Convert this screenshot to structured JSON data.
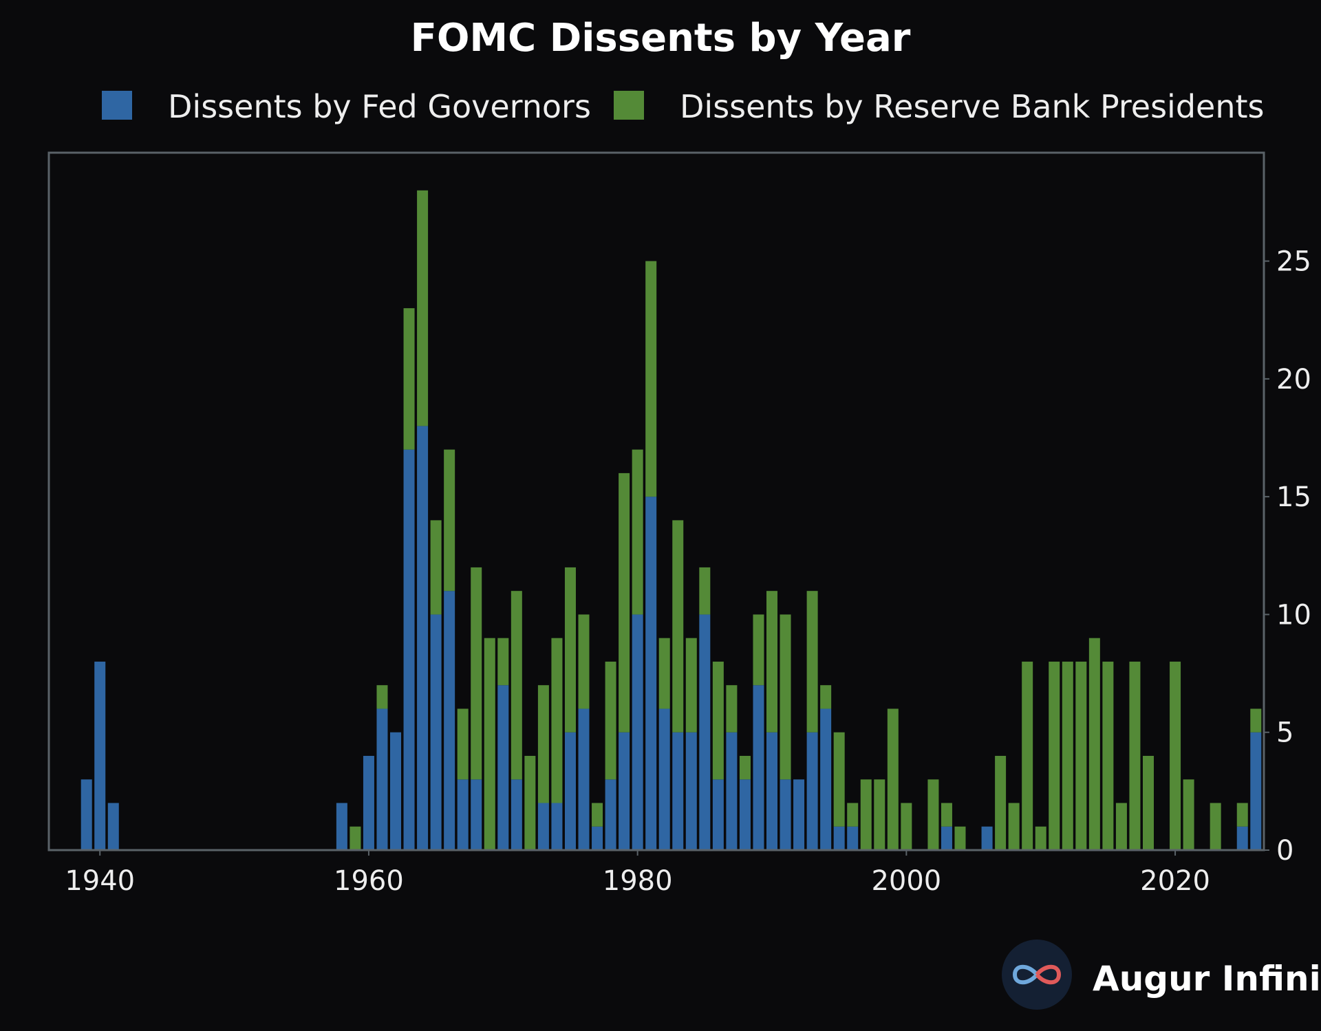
{
  "chart_data": {
    "type": "bar",
    "stacked": true,
    "title": "FOMC Dissents by Year",
    "xlabel": "",
    "ylabel": "",
    "xlim": [
      1936.2,
      2026.6
    ],
    "ylim": [
      0,
      29.6
    ],
    "x_ticks": [
      1940,
      1960,
      1980,
      2000,
      2020
    ],
    "y_ticks": [
      0,
      5,
      10,
      15,
      20,
      25
    ],
    "y_axis_side": "right",
    "legend_position": "top",
    "grid": false,
    "series": [
      {
        "name": "Dissents by Fed Governors",
        "color": "#2f66a3"
      },
      {
        "name": "Dissents by Reserve Bank Presidents",
        "color": "#548a37"
      }
    ],
    "data": [
      [
        1939,
        3,
        0
      ],
      [
        1940,
        8,
        0
      ],
      [
        1941,
        2,
        0
      ],
      [
        1958,
        2,
        0
      ],
      [
        1959,
        0,
        1
      ],
      [
        1960,
        4,
        0
      ],
      [
        1961,
        6,
        1
      ],
      [
        1962,
        5,
        0
      ],
      [
        1963,
        17,
        6
      ],
      [
        1964,
        18,
        10
      ],
      [
        1965,
        10,
        4
      ],
      [
        1966,
        11,
        6
      ],
      [
        1967,
        3,
        3
      ],
      [
        1968,
        3,
        9
      ],
      [
        1969,
        0,
        9
      ],
      [
        1970,
        7,
        2
      ],
      [
        1971,
        3,
        8
      ],
      [
        1972,
        0,
        4
      ],
      [
        1973,
        2,
        5
      ],
      [
        1974,
        2,
        7
      ],
      [
        1975,
        5,
        7
      ],
      [
        1976,
        6,
        4
      ],
      [
        1977,
        1,
        1
      ],
      [
        1978,
        3,
        5
      ],
      [
        1979,
        5,
        11
      ],
      [
        1980,
        10,
        7
      ],
      [
        1981,
        15,
        10
      ],
      [
        1982,
        6,
        3
      ],
      [
        1983,
        5,
        9
      ],
      [
        1984,
        5,
        4
      ],
      [
        1985,
        10,
        2
      ],
      [
        1986,
        3,
        5
      ],
      [
        1987,
        5,
        2
      ],
      [
        1988,
        3,
        1
      ],
      [
        1989,
        7,
        3
      ],
      [
        1990,
        5,
        6
      ],
      [
        1991,
        3,
        7
      ],
      [
        1992,
        3,
        0
      ],
      [
        1993,
        5,
        6
      ],
      [
        1994,
        6,
        1
      ],
      [
        1995,
        1,
        4
      ],
      [
        1996,
        1,
        1
      ],
      [
        1997,
        0,
        3
      ],
      [
        1998,
        0,
        3
      ],
      [
        1999,
        0,
        6
      ],
      [
        2000,
        0,
        2
      ],
      [
        2002,
        0,
        3
      ],
      [
        2003,
        1,
        1
      ],
      [
        2004,
        0,
        1
      ],
      [
        2006,
        1,
        0
      ],
      [
        2007,
        0,
        4
      ],
      [
        2008,
        0,
        2
      ],
      [
        2009,
        0,
        8
      ],
      [
        2010,
        0,
        1
      ],
      [
        2011,
        0,
        8
      ],
      [
        2012,
        0,
        8
      ],
      [
        2013,
        0,
        8
      ],
      [
        2014,
        0,
        9
      ],
      [
        2015,
        0,
        8
      ],
      [
        2016,
        0,
        2
      ],
      [
        2017,
        0,
        8
      ],
      [
        2018,
        0,
        4
      ],
      [
        2020,
        0,
        8
      ],
      [
        2021,
        0,
        3
      ],
      [
        2023,
        0,
        2
      ],
      [
        2025,
        1,
        1
      ],
      [
        2026,
        5,
        1
      ]
    ],
    "data_columns": [
      "year",
      "Dissents by Fed Governors",
      "Dissents by Reserve Bank Presidents"
    ]
  },
  "brand": {
    "name": "Augur Infinity",
    "icon": "infinity-logo-icon"
  },
  "colors": {
    "background": "#0a0a0c",
    "axis": "#5a6268"
  }
}
